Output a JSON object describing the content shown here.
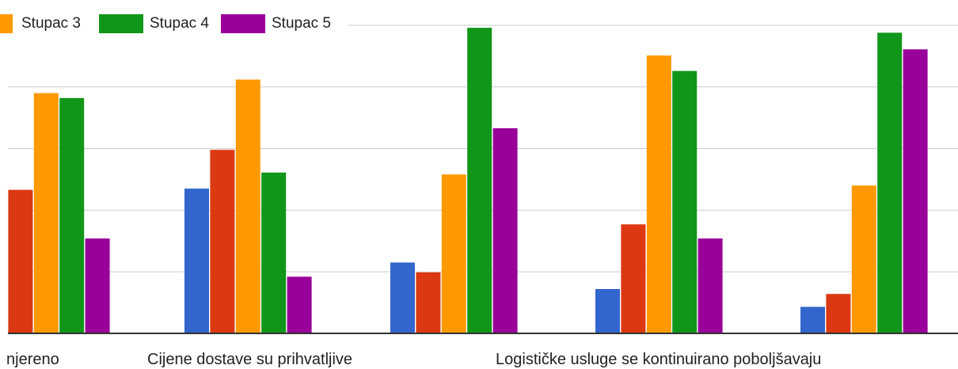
{
  "chart_data": {
    "type": "bar",
    "categories": [
      "njereno",
      "Cijene dostave su prihvatljive",
      "",
      "Logističke usluge se kontinuirano poboljšavaju",
      ""
    ],
    "series": [
      {
        "name": "",
        "color": "#3366cc",
        "values": [
          null,
          23.5,
          11.5,
          7.2,
          4.3
        ]
      },
      {
        "name": "",
        "color": "#dc3912",
        "values": [
          23.3,
          29.8,
          9.9,
          17.7,
          6.4
        ]
      },
      {
        "name": "Stupac 3",
        "color": "#ff9900",
        "values": [
          39.0,
          41.2,
          25.8,
          45.1,
          24.0
        ]
      },
      {
        "name": "Stupac 4",
        "color": "#109618",
        "values": [
          38.2,
          26.1,
          49.6,
          42.6,
          48.8
        ]
      },
      {
        "name": "Stupac 5",
        "color": "#990099",
        "values": [
          15.4,
          9.2,
          33.3,
          15.4,
          46.1
        ]
      }
    ],
    "ylim": [
      0,
      50
    ],
    "grid": true,
    "legend": "top-left"
  }
}
